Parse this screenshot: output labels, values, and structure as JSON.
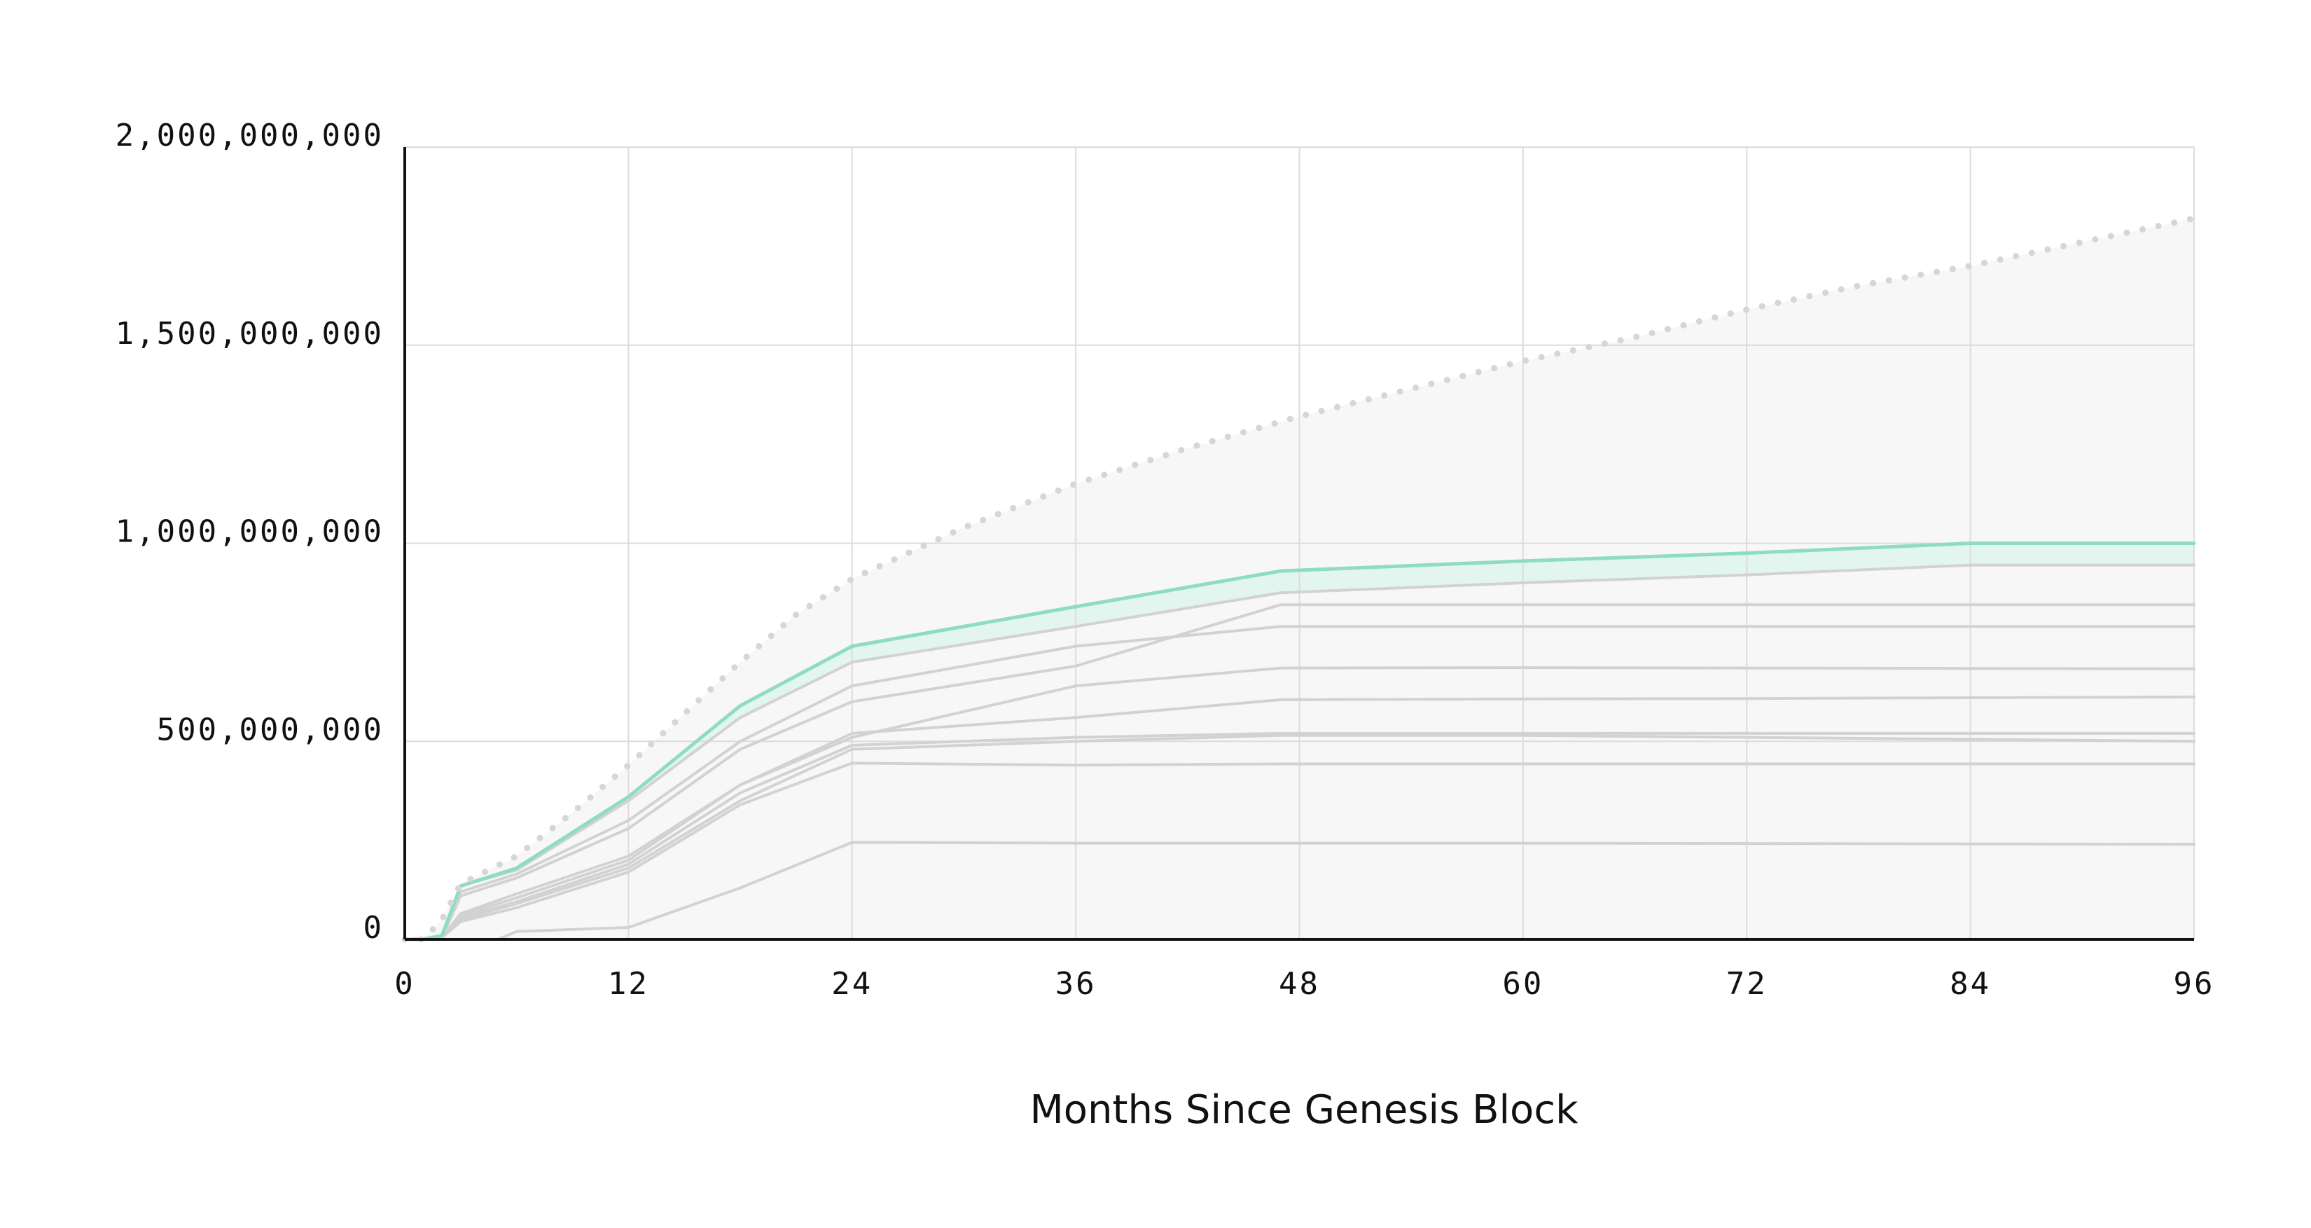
{
  "chart_data": {
    "type": "line",
    "title": "",
    "xlabel": "Months Since Genesis Block",
    "ylabel": "",
    "xlim": [
      0,
      96
    ],
    "ylim": [
      0,
      2000000000
    ],
    "x_ticks": [
      0,
      12,
      24,
      36,
      48,
      60,
      72,
      84,
      96
    ],
    "x_tick_labels": [
      "0",
      "12",
      "24",
      "36",
      "48",
      "60",
      "72",
      "84",
      "96"
    ],
    "y_ticks": [
      0,
      500000000,
      1000000000,
      1500000000,
      2000000000
    ],
    "y_tick_labels": [
      "0",
      "500,000,000",
      "1,000,000,000",
      "1,500,000,000",
      "2,000,000,000"
    ],
    "grid": true,
    "legend": "none",
    "colors": {
      "total": "#8fdcc4",
      "total_band": "#e2f5ee",
      "components": "#d2d2d2",
      "cap_dots": "#d6d6d6",
      "cap_area": "#f7f7f7",
      "axis": "#111111",
      "grid": "#dcdcdc"
    },
    "series": [
      {
        "role": "cap",
        "style": "dotted",
        "x": [
          0,
          1,
          2,
          3,
          6,
          9,
          12,
          15,
          18,
          21,
          24,
          30,
          36,
          42,
          48,
          54,
          60,
          66,
          72,
          78,
          84,
          90,
          96
        ],
        "values": [
          0,
          0,
          50000000,
          140000000,
          210000000,
          320000000,
          440000000,
          570000000,
          700000000,
          820000000,
          910000000,
          1040000000,
          1150000000,
          1240000000,
          1320000000,
          1390000000,
          1460000000,
          1520000000,
          1590000000,
          1650000000,
          1700000000,
          1760000000,
          1820000000
        ]
      },
      {
        "role": "total",
        "x": [
          0,
          1,
          2,
          3,
          6,
          12,
          18,
          24,
          36,
          47,
          60,
          72,
          84,
          96
        ],
        "values": [
          0,
          0,
          10000000,
          135000000,
          180000000,
          360000000,
          590000000,
          740000000,
          840000000,
          930000000,
          955000000,
          975000000,
          1000000000,
          1000000000
        ]
      },
      {
        "role": "component",
        "x": [
          0,
          1,
          2,
          3,
          6,
          12,
          18,
          24,
          36,
          47,
          60,
          72,
          84,
          96
        ],
        "values": [
          0,
          0,
          10000000,
          135000000,
          175000000,
          350000000,
          560000000,
          700000000,
          790000000,
          875000000,
          900000000,
          920000000,
          945000000,
          945000000
        ]
      },
      {
        "role": "component",
        "x": [
          0,
          2,
          3,
          6,
          12,
          18,
          24,
          36,
          47,
          60,
          72,
          84,
          96
        ],
        "values": [
          0,
          5000000,
          120000000,
          165000000,
          300000000,
          500000000,
          640000000,
          740000000,
          790000000,
          790000000,
          790000000,
          790000000,
          790000000
        ]
      },
      {
        "role": "component",
        "x": [
          0,
          2,
          3,
          6,
          12,
          18,
          24,
          36,
          47,
          60,
          72,
          84,
          96
        ],
        "values": [
          0,
          5000000,
          110000000,
          155000000,
          280000000,
          480000000,
          600000000,
          690000000,
          845000000,
          845000000,
          845000000,
          845000000,
          845000000
        ]
      },
      {
        "role": "component",
        "x": [
          0,
          2,
          3,
          6,
          12,
          18,
          24,
          36,
          47,
          60,
          72,
          84,
          96
        ],
        "values": [
          0,
          5000000,
          65000000,
          115000000,
          210000000,
          390000000,
          520000000,
          560000000,
          605000000,
          607000000,
          608000000,
          610000000,
          612000000
        ]
      },
      {
        "role": "component",
        "x": [
          0,
          2,
          3,
          6,
          12,
          18,
          24,
          36,
          47,
          60,
          72,
          84,
          96
        ],
        "values": [
          0,
          5000000,
          60000000,
          105000000,
          200000000,
          390000000,
          510000000,
          640000000,
          685000000,
          686000000,
          685000000,
          684000000,
          683000000
        ]
      },
      {
        "role": "component",
        "x": [
          0,
          2,
          3,
          6,
          12,
          18,
          24,
          36,
          47,
          60,
          72,
          84,
          96
        ],
        "values": [
          0,
          5000000,
          55000000,
          95000000,
          190000000,
          370000000,
          490000000,
          510000000,
          520000000,
          520000000,
          520000000,
          520000000,
          520000000
        ]
      },
      {
        "role": "component",
        "x": [
          0,
          2,
          3,
          6,
          12,
          18,
          24,
          36,
          47,
          60,
          72,
          84,
          96
        ],
        "values": [
          0,
          5000000,
          50000000,
          90000000,
          180000000,
          350000000,
          480000000,
          500000000,
          515000000,
          515000000,
          510000000,
          505000000,
          500000000
        ]
      },
      {
        "role": "component",
        "x": [
          0,
          2,
          3,
          6,
          12,
          18,
          24,
          36,
          47,
          60,
          72,
          84,
          96
        ],
        "values": [
          0,
          5000000,
          45000000,
          80000000,
          170000000,
          340000000,
          445000000,
          440000000,
          443000000,
          443000000,
          443000000,
          443000000,
          443000000
        ]
      },
      {
        "role": "component",
        "x": [
          0,
          5,
          6,
          12,
          18,
          24,
          36,
          47,
          60,
          72,
          84,
          96
        ],
        "values": [
          0,
          0,
          20000000,
          30000000,
          130000000,
          245000000,
          243000000,
          243000000,
          243000000,
          242000000,
          241000000,
          240000000
        ]
      }
    ]
  }
}
